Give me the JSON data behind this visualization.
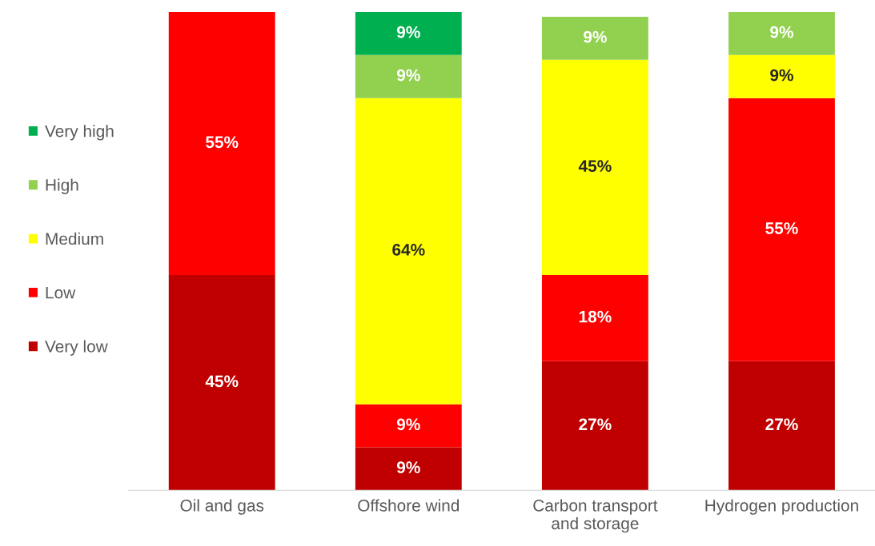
{
  "chart_data": {
    "type": "bar",
    "stacked": true,
    "categories": [
      "Oil and gas",
      "Offshore wind",
      "Carbon transport\nand storage",
      "Hydrogen production"
    ],
    "series": [
      {
        "name": "Very low",
        "color": "#c00000",
        "values": [
          45,
          9,
          27,
          27
        ],
        "value_labels": [
          "45%",
          "9%",
          "27%",
          "27%"
        ]
      },
      {
        "name": "Low",
        "color": "#ff0000",
        "values": [
          55,
          9,
          18,
          55
        ],
        "value_labels": [
          "55%",
          "9%",
          "18%",
          "55%"
        ]
      },
      {
        "name": "Medium",
        "color": "#ffff00",
        "values": [
          null,
          64,
          45,
          9
        ],
        "value_labels": [
          null,
          "64%",
          "45%",
          "9%"
        ]
      },
      {
        "name": "High",
        "color": "#92d050",
        "values": [
          null,
          9,
          9,
          9
        ],
        "value_labels": [
          null,
          "9%",
          "9%",
          "9%"
        ]
      },
      {
        "name": "Very high",
        "color": "#00b050",
        "values": [
          null,
          9,
          null,
          null
        ],
        "value_labels": [
          null,
          "9%",
          null,
          null
        ]
      }
    ],
    "legend": "left",
    "grid": false
  }
}
